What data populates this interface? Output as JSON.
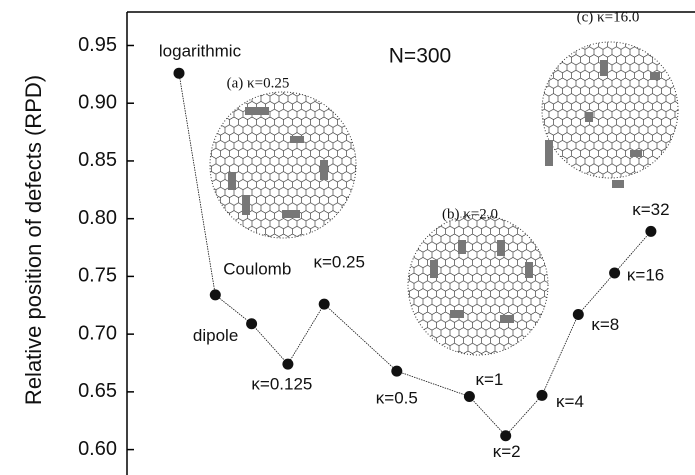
{
  "chart_data": {
    "type": "line",
    "y_label": "Relative position of defects (RPD)",
    "annotations": [
      "N=300",
      "(a) κ=0.25",
      "(b) κ=2.0",
      "(c) κ=16.0"
    ],
    "categories": [
      "logarithmic",
      "Coulomb",
      "dipole",
      "κ=0.125",
      "κ=0.25",
      "κ=0.5",
      "κ=1",
      "κ=2",
      "κ=4",
      "κ=8",
      "κ=16",
      "κ=32"
    ],
    "values": [
      0.926,
      0.734,
      0.709,
      0.674,
      0.726,
      0.668,
      0.646,
      0.612,
      0.647,
      0.717,
      0.753,
      0.789
    ],
    "color": "#111111",
    "ylim": [
      0.578,
      0.979
    ],
    "yticks": [
      {
        "value": 0.6,
        "label": "0.60"
      },
      {
        "value": 0.65,
        "label": "0.65"
      },
      {
        "value": 0.7,
        "label": "0.70"
      },
      {
        "value": 0.75,
        "label": "0.75"
      },
      {
        "value": 0.8,
        "label": "0.80"
      },
      {
        "value": 0.85,
        "label": "0.85"
      },
      {
        "value": 0.9,
        "label": "0.90"
      },
      {
        "value": 0.95,
        "label": "0.95"
      }
    ]
  }
}
